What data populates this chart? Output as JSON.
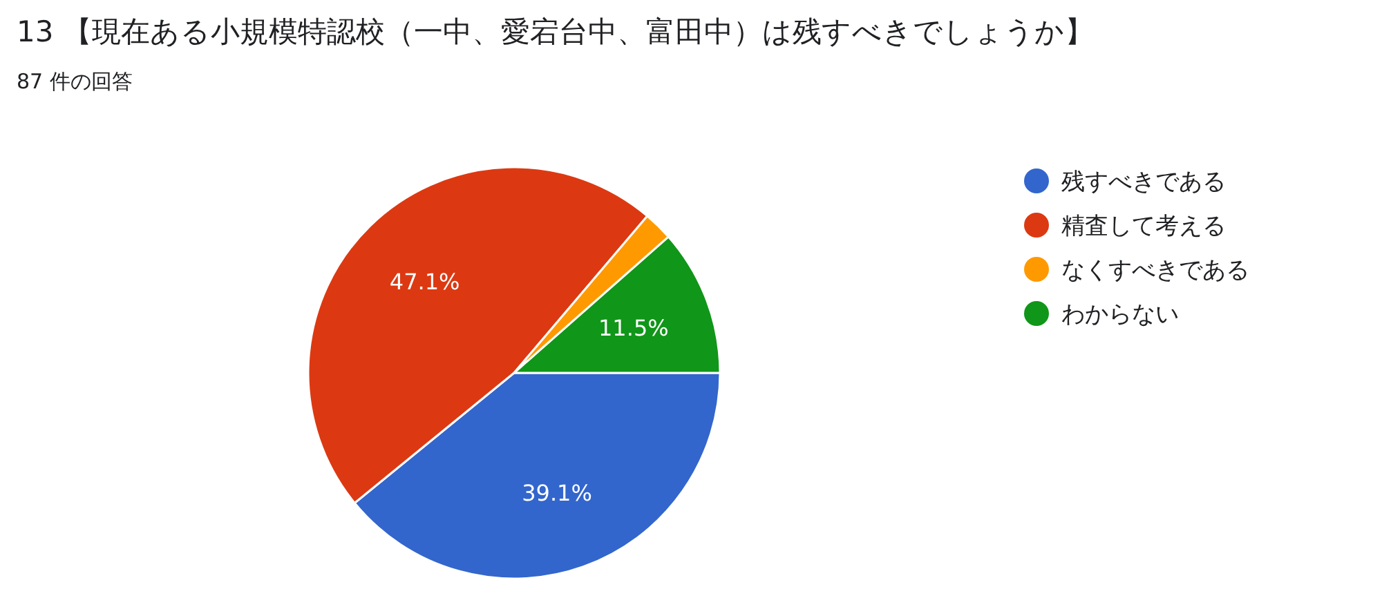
{
  "chart_data": {
    "type": "pie",
    "title": "13 【現在ある小規模特認校（一中、愛宕台中、富田中）は残すべきでしょうか】",
    "subtitle": "87 件の回答",
    "categories": [
      "残すべきである",
      "精査して考える",
      "なくすべきである",
      "わからない"
    ],
    "values": [
      39.1,
      47.1,
      2.3,
      11.5
    ],
    "colors": [
      "#3366cc",
      "#dc3912",
      "#ff9900",
      "#109618"
    ],
    "value_labels": [
      "39.1%",
      "47.1%",
      null,
      "11.5%"
    ],
    "legend": "top right"
  }
}
